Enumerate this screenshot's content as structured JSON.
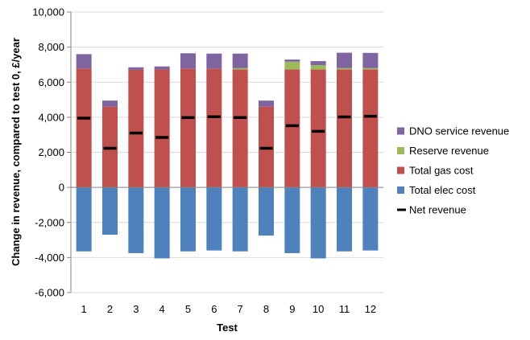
{
  "chart_data": {
    "type": "bar",
    "stacked": true,
    "title": "",
    "xlabel": "Test",
    "ylabel": "Change in revenue, compared to test 0, £/year",
    "ylim": [
      -6000,
      10000
    ],
    "yticks": [
      -6000,
      -4000,
      -2000,
      0,
      2000,
      4000,
      6000,
      8000,
      10000
    ],
    "ytick_labels": [
      "-6,000",
      "-4,000",
      "-2,000",
      "0",
      "2,000",
      "4,000",
      "6,000",
      "8,000",
      "10,000"
    ],
    "categories": [
      "1",
      "2",
      "3",
      "4",
      "5",
      "6",
      "7",
      "8",
      "9",
      "10",
      "11",
      "12"
    ],
    "grid": "horizontal",
    "legend_position": "right",
    "series": [
      {
        "name": "Total elec cost",
        "kind": "bar",
        "color": "#4f81bd",
        "values": [
          -3650,
          -2700,
          -3750,
          -4050,
          -3650,
          -3600,
          -3650,
          -2750,
          -3750,
          -4050,
          -3650,
          -3600
        ]
      },
      {
        "name": "Total gas cost",
        "kind": "bar",
        "color": "#c0504d",
        "values": [
          6780,
          4600,
          6700,
          6720,
          6780,
          6780,
          6720,
          4600,
          6720,
          6720,
          6720,
          6720
        ]
      },
      {
        "name": "Reserve revenue",
        "kind": "bar",
        "color": "#9bbb59",
        "values": [
          0,
          0,
          0,
          0,
          0,
          0,
          80,
          0,
          450,
          250,
          80,
          80
        ]
      },
      {
        "name": "DNO service revenue",
        "kind": "bar",
        "color": "#8064a2",
        "values": [
          820,
          350,
          150,
          180,
          870,
          850,
          830,
          350,
          120,
          230,
          880,
          870
        ]
      },
      {
        "name": "Net revenue",
        "kind": "marker",
        "color": "#000000",
        "values": [
          3950,
          2230,
          3100,
          2850,
          3980,
          4030,
          3980,
          2230,
          3520,
          3200,
          4020,
          4060
        ]
      }
    ],
    "legend": [
      {
        "name": "DNO service revenue",
        "color": "#8064a2",
        "kind": "bar"
      },
      {
        "name": "Reserve revenue",
        "color": "#9bbb59",
        "kind": "bar"
      },
      {
        "name": "Total gas cost",
        "color": "#c0504d",
        "kind": "bar"
      },
      {
        "name": "Total elec cost",
        "color": "#4f81bd",
        "kind": "bar"
      },
      {
        "name": "Net revenue",
        "color": "#000000",
        "kind": "marker"
      }
    ]
  }
}
